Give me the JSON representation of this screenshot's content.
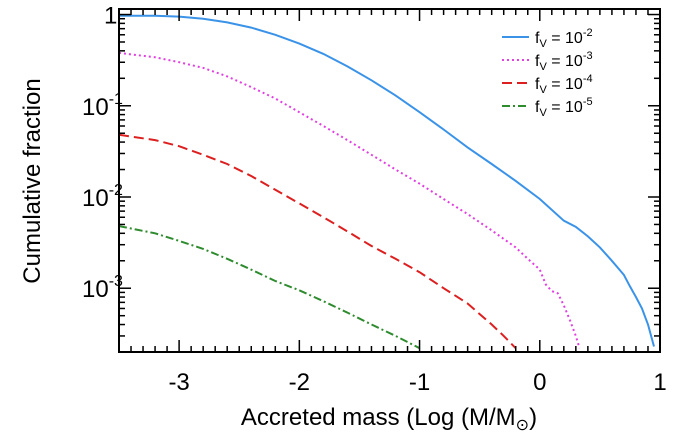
{
  "chart_data": {
    "type": "line",
    "xlabel": "Accreted mass (Log (M/M",
    "xlabel_suffix": ")",
    "xlabel_symbol": "⊙",
    "ylabel": "Cumulative fraction",
    "y_scale": "log",
    "xlim": [
      -3.5,
      1.0
    ],
    "ylim": [
      0.0002,
      1.15
    ],
    "grid": false,
    "legend_position": "top-right",
    "x_ticks": [
      {
        "value": -3,
        "label": "-3"
      },
      {
        "value": -2,
        "label": "-2"
      },
      {
        "value": -1,
        "label": "-1"
      },
      {
        "value": 0,
        "label": "0"
      },
      {
        "value": 1,
        "label": "1"
      }
    ],
    "y_ticks": [
      {
        "value": 1,
        "base": "1",
        "exp": ""
      },
      {
        "value": 0.1,
        "base": "10",
        "exp": "-1"
      },
      {
        "value": 0.01,
        "base": "10",
        "exp": "-2"
      },
      {
        "value": 0.001,
        "base": "10",
        "exp": "-3"
      }
    ],
    "series": [
      {
        "name": "f_V = 10^-2",
        "legend_main": "f",
        "legend_sub": "V",
        "legend_eq": " = 10",
        "legend_exp": "-2",
        "color": "#3a93e8",
        "dash": "",
        "points": [
          [
            -3.5,
            0.97
          ],
          [
            -3.2,
            0.97
          ],
          [
            -3.0,
            0.95
          ],
          [
            -2.8,
            0.9
          ],
          [
            -2.6,
            0.82
          ],
          [
            -2.4,
            0.72
          ],
          [
            -2.2,
            0.6
          ],
          [
            -2.0,
            0.48
          ],
          [
            -1.8,
            0.37
          ],
          [
            -1.6,
            0.27
          ],
          [
            -1.4,
            0.19
          ],
          [
            -1.2,
            0.13
          ],
          [
            -1.0,
            0.085
          ],
          [
            -0.8,
            0.055
          ],
          [
            -0.6,
            0.035
          ],
          [
            -0.4,
            0.023
          ],
          [
            -0.2,
            0.015
          ],
          [
            0.0,
            0.0095
          ],
          [
            0.2,
            0.0055
          ],
          [
            0.3,
            0.0047
          ],
          [
            0.4,
            0.0037
          ],
          [
            0.5,
            0.0028
          ],
          [
            0.6,
            0.002
          ],
          [
            0.7,
            0.0014
          ],
          [
            0.75,
            0.00105
          ],
          [
            0.8,
            0.0008
          ],
          [
            0.85,
            0.0006
          ],
          [
            0.9,
            0.0004
          ],
          [
            0.95,
            0.00023
          ]
        ]
      },
      {
        "name": "f_V = 10^-3",
        "legend_main": "f",
        "legend_sub": "V",
        "legend_eq": " = 10",
        "legend_exp": "-3",
        "color": "#e23ee2",
        "dash": "2,3",
        "points": [
          [
            -3.5,
            0.38
          ],
          [
            -3.2,
            0.34
          ],
          [
            -3.0,
            0.3
          ],
          [
            -2.8,
            0.26
          ],
          [
            -2.6,
            0.21
          ],
          [
            -2.4,
            0.16
          ],
          [
            -2.2,
            0.12
          ],
          [
            -2.0,
            0.085
          ],
          [
            -1.8,
            0.06
          ],
          [
            -1.6,
            0.042
          ],
          [
            -1.4,
            0.029
          ],
          [
            -1.2,
            0.02
          ],
          [
            -1.0,
            0.014
          ],
          [
            -0.8,
            0.0095
          ],
          [
            -0.6,
            0.0065
          ],
          [
            -0.4,
            0.0043
          ],
          [
            -0.2,
            0.0028
          ],
          [
            -0.1,
            0.0021
          ],
          [
            0.0,
            0.0016
          ],
          [
            0.05,
            0.0011
          ],
          [
            0.1,
            0.00093
          ],
          [
            0.15,
            0.00088
          ],
          [
            0.2,
            0.00065
          ],
          [
            0.25,
            0.00045
          ],
          [
            0.3,
            0.0003
          ],
          [
            0.33,
            0.00022
          ]
        ]
      },
      {
        "name": "f_V = 10^-4",
        "legend_main": "f",
        "legend_sub": "V",
        "legend_eq": " = 10",
        "legend_exp": "-4",
        "color": "#dd1f1f",
        "dash": "10,5",
        "points": [
          [
            -3.5,
            0.048
          ],
          [
            -3.2,
            0.042
          ],
          [
            -3.0,
            0.036
          ],
          [
            -2.8,
            0.029
          ],
          [
            -2.6,
            0.023
          ],
          [
            -2.4,
            0.017
          ],
          [
            -2.2,
            0.012
          ],
          [
            -2.0,
            0.0085
          ],
          [
            -1.8,
            0.006
          ],
          [
            -1.6,
            0.0042
          ],
          [
            -1.4,
            0.0029
          ],
          [
            -1.2,
            0.0021
          ],
          [
            -1.0,
            0.0015
          ],
          [
            -0.8,
            0.001
          ],
          [
            -0.6,
            0.00068
          ],
          [
            -0.5,
            0.00052
          ],
          [
            -0.4,
            0.0004
          ],
          [
            -0.3,
            0.0003
          ],
          [
            -0.2,
            0.00022
          ]
        ]
      },
      {
        "name": "f_V = 10^-5",
        "legend_main": "f",
        "legend_sub": "V",
        "legend_eq": " = 10",
        "legend_exp": "-5",
        "color": "#2e8b2e",
        "dash": "8,3,2,3",
        "points": [
          [
            -3.5,
            0.0048
          ],
          [
            -3.2,
            0.004
          ],
          [
            -3.0,
            0.0033
          ],
          [
            -2.8,
            0.0027
          ],
          [
            -2.6,
            0.0021
          ],
          [
            -2.4,
            0.0016
          ],
          [
            -2.2,
            0.0012
          ],
          [
            -2.0,
            0.00095
          ],
          [
            -1.8,
            0.00072
          ],
          [
            -1.6,
            0.00054
          ],
          [
            -1.4,
            0.0004
          ],
          [
            -1.2,
            0.0003
          ],
          [
            -1.0,
            0.00022
          ]
        ]
      }
    ]
  }
}
